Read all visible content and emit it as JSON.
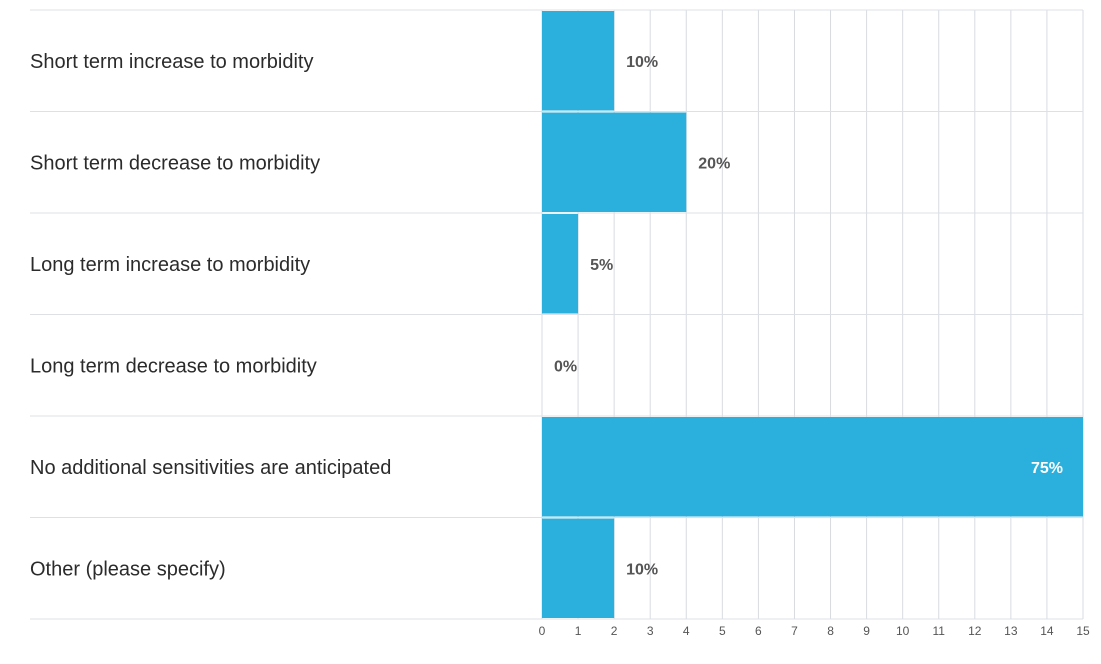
{
  "chart_data": {
    "type": "bar",
    "orientation": "horizontal",
    "categories": [
      "Short term increase to morbidity",
      "Short term decrease to morbidity",
      "Long term increase to morbidity",
      "Long term decrease to morbidity",
      "No additional sensitivities are anticipated",
      "Other (please specify)"
    ],
    "values": [
      2,
      4,
      1,
      0,
      15,
      2
    ],
    "value_labels": [
      "10%",
      "20%",
      "5%",
      "0%",
      "75%",
      "10%"
    ],
    "xlim": [
      0,
      15
    ],
    "xticks": [
      0,
      1,
      2,
      3,
      4,
      5,
      6,
      7,
      8,
      9,
      10,
      11,
      12,
      13,
      14,
      15
    ],
    "grid": true,
    "bar_color": "#2bb0dd",
    "title": "",
    "xlabel": "",
    "ylabel": ""
  }
}
